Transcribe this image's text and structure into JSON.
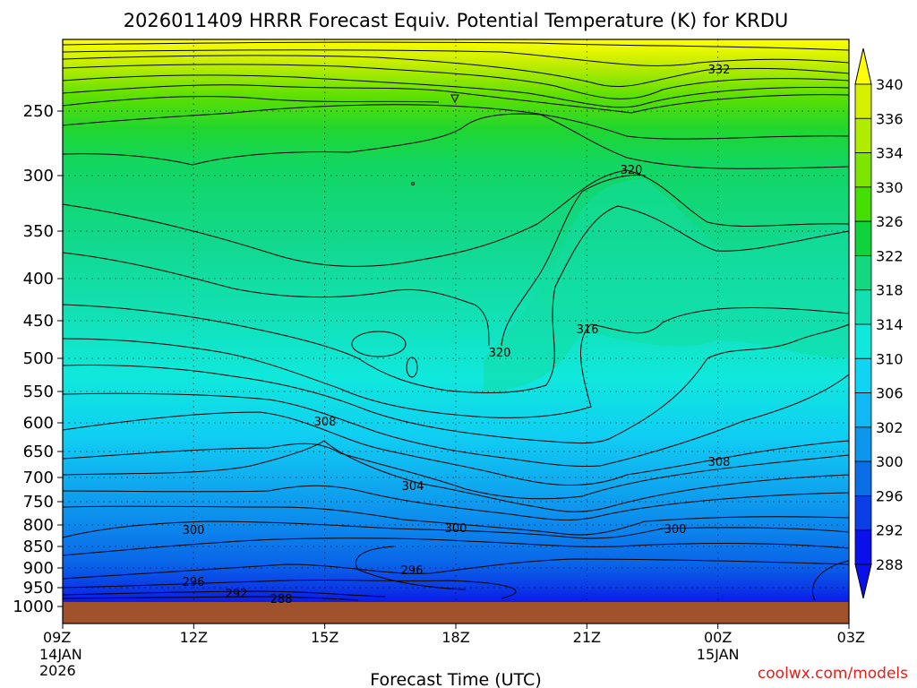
{
  "chart_data": {
    "type": "contour",
    "title": "2026011409 HRRR Forecast Equiv. Potential Temperature (K) for KRDU",
    "xlabel": "Forecast Time (UTC)",
    "ylabel": "",
    "x_ticks": [
      {
        "label": "09Z",
        "sub1": "14JAN",
        "sub2": "2026",
        "hour": 0
      },
      {
        "label": "12Z",
        "sub1": "",
        "sub2": "",
        "hour": 3
      },
      {
        "label": "15Z",
        "sub1": "",
        "sub2": "",
        "hour": 6
      },
      {
        "label": "18Z",
        "sub1": "",
        "sub2": "",
        "hour": 9
      },
      {
        "label": "21Z",
        "sub1": "",
        "sub2": "",
        "hour": 12
      },
      {
        "label": "00Z",
        "sub1": "15JAN",
        "sub2": "",
        "hour": 15
      },
      {
        "label": "03Z",
        "sub1": "",
        "sub2": "",
        "hour": 18
      }
    ],
    "y_ticks": [
      "250",
      "300",
      "350",
      "400",
      "450",
      "500",
      "550",
      "600",
      "650",
      "700",
      "750",
      "800",
      "850",
      "900",
      "950",
      "1000"
    ],
    "y_tick_values": [
      250,
      300,
      350,
      400,
      450,
      500,
      550,
      600,
      650,
      700,
      750,
      800,
      850,
      900,
      950,
      1000
    ],
    "pressure_range_hpa": [
      200,
      1000
    ],
    "grid": true,
    "colorbar": {
      "levels": [
        "340",
        "336",
        "334",
        "330",
        "326",
        "322",
        "318",
        "314",
        "310",
        "306",
        "302",
        "300",
        "296",
        "292",
        "288"
      ],
      "colors": [
        "#ffff00",
        "#d4f000",
        "#b0ec00",
        "#7ce600",
        "#44de00",
        "#10d23a",
        "#12d880",
        "#12e0b0",
        "#10e8de",
        "#10d4f4",
        "#10b8f4",
        "#0c96ec",
        "#0a6ee6",
        "#0a3ee6",
        "#0a10ea"
      ]
    },
    "contour_labels": [
      "332",
      "320",
      "320",
      "316",
      "308",
      "308",
      "304",
      "300",
      "300",
      "300",
      "296",
      "296",
      "292",
      "288"
    ],
    "ground_color": "#a0522d",
    "credit": "coolwx.com/models"
  }
}
